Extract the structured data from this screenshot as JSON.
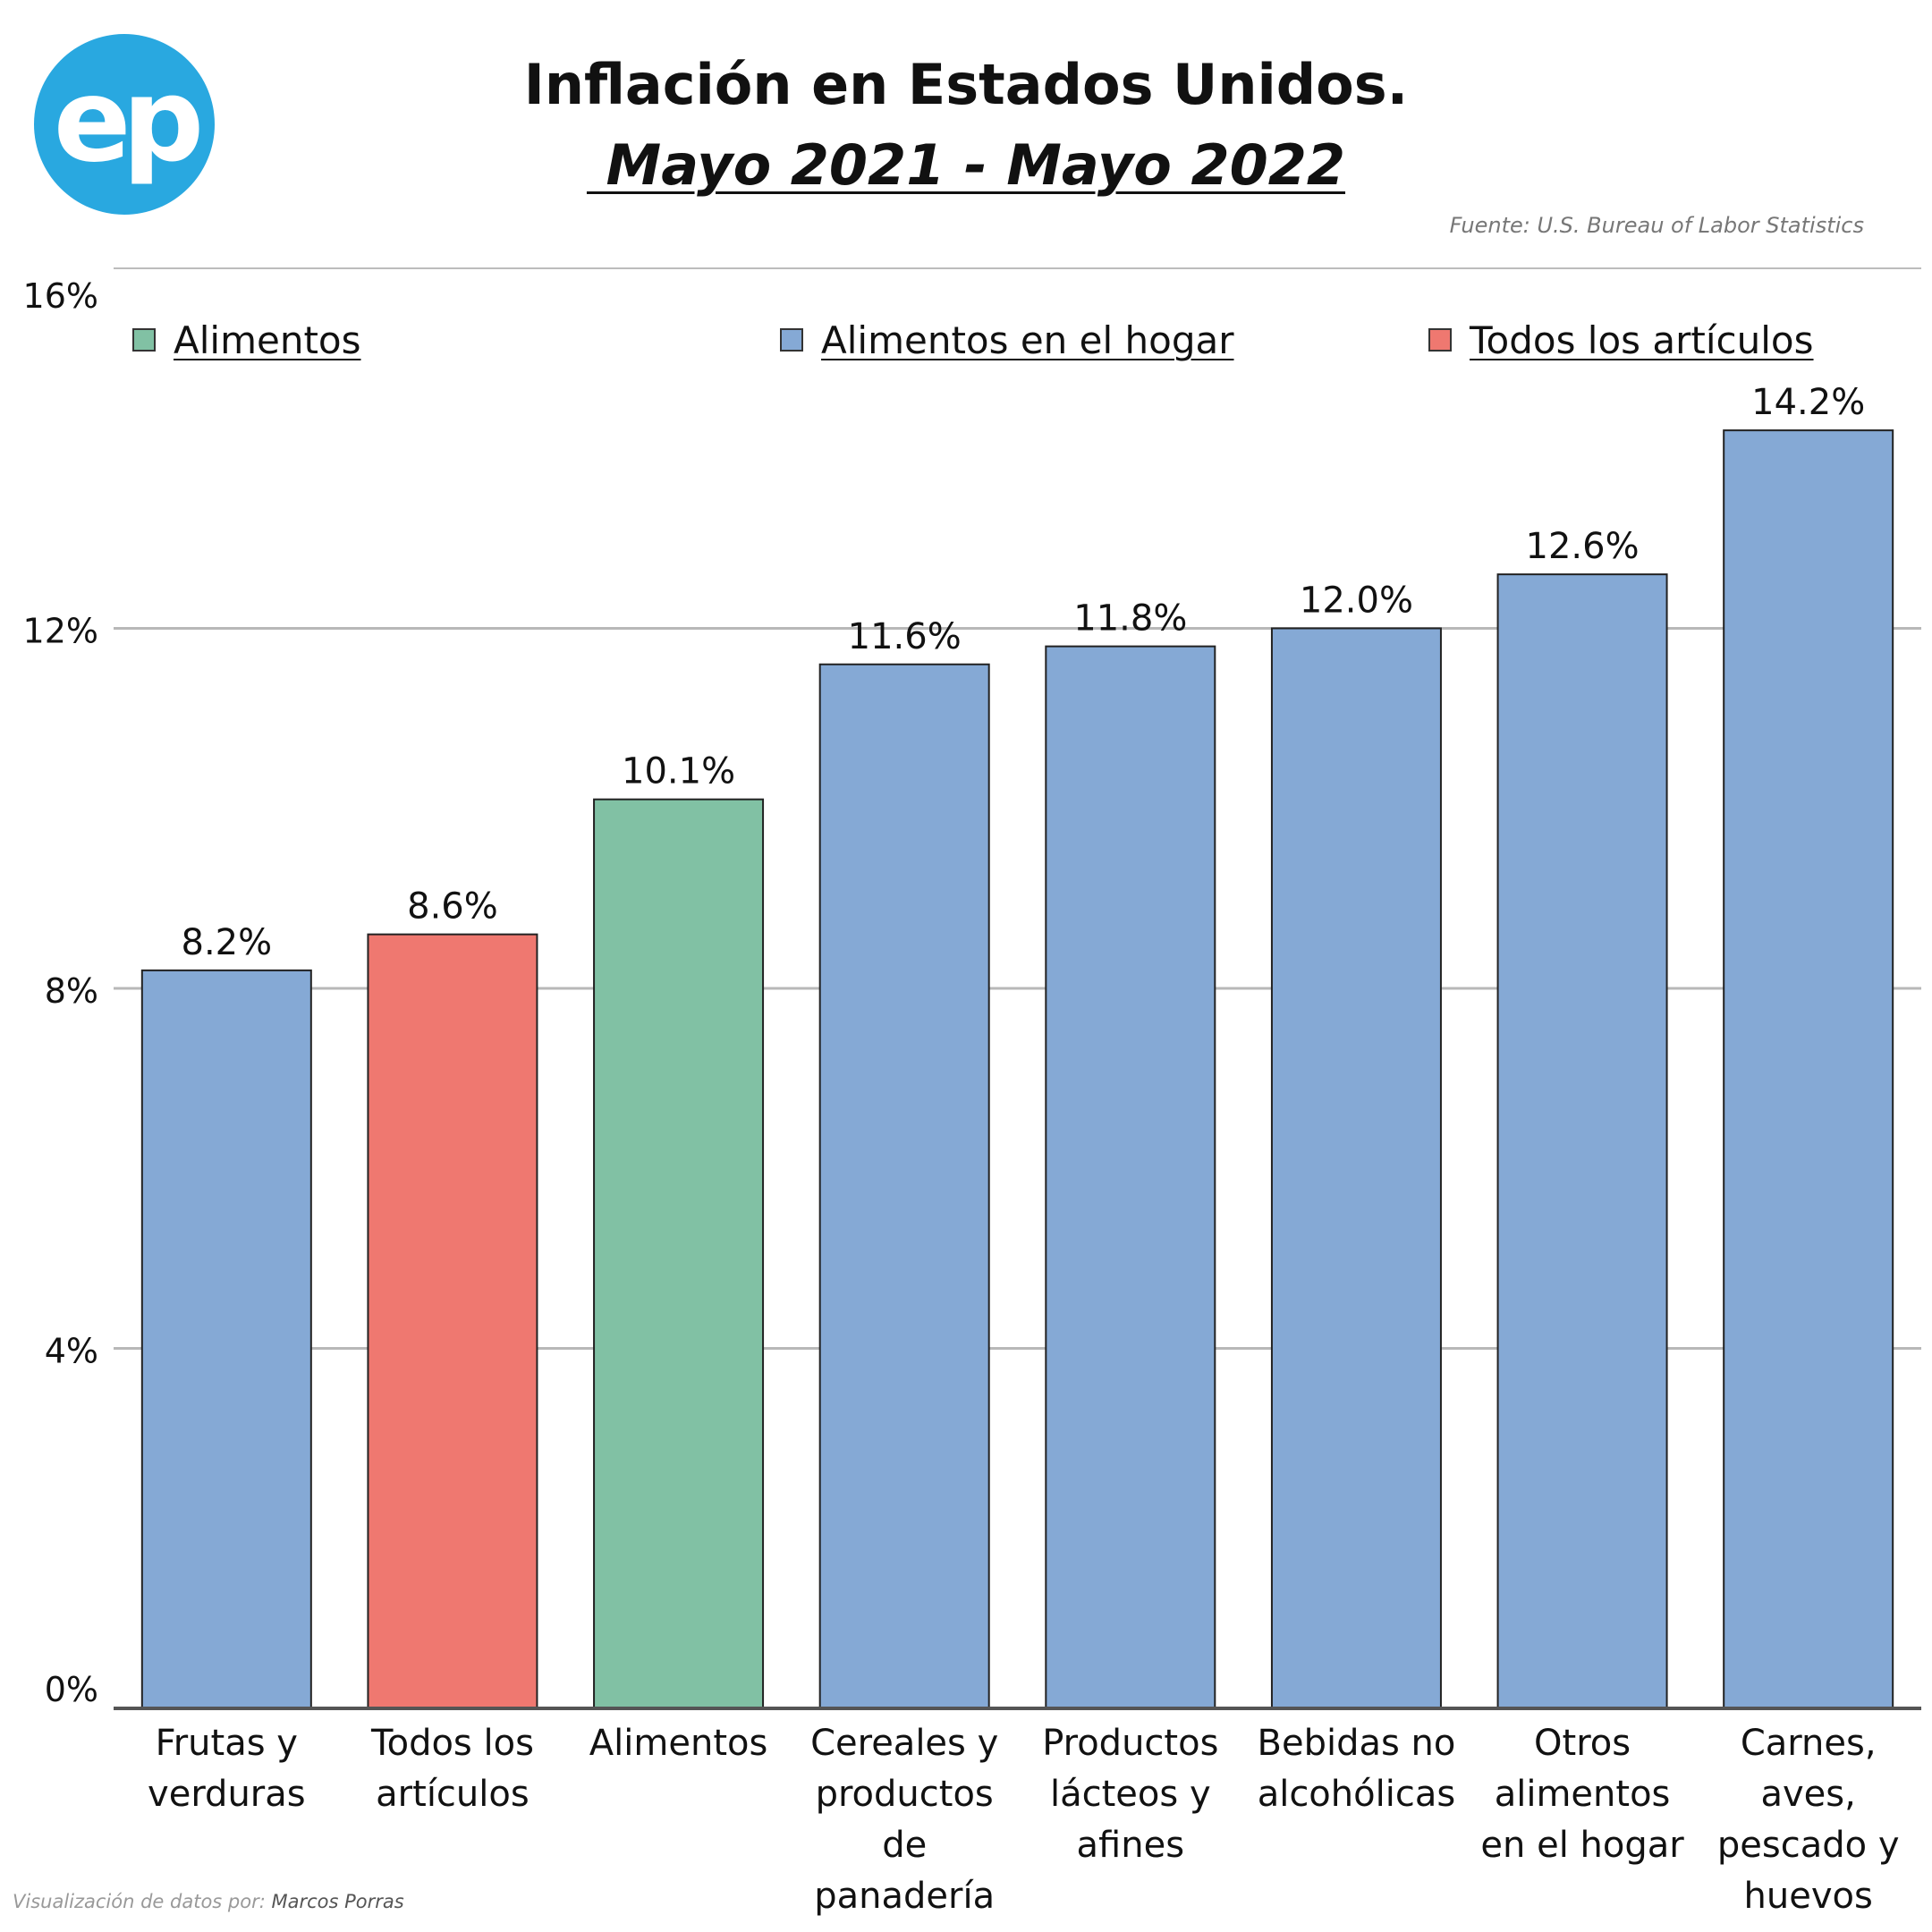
{
  "logo": {
    "text": "ep",
    "color": "#29a8e0"
  },
  "header": {
    "title": "Inflación en Estados Unidos.",
    "subtitle": " Mayo 2021 - Mayo 2022",
    "source": "Fuente: U.S. Bureau of Labor Statistics"
  },
  "footer": {
    "credit_prefix": "Visualización de datos por: ",
    "credit_name": "Marcos Porras"
  },
  "legend": [
    {
      "label": "Alimentos",
      "color": "#81c1a4"
    },
    {
      "label": "Alimentos en el hogar",
      "color": "#85a9d5"
    },
    {
      "label": "Todos los artículos",
      "color": "#ef7870"
    }
  ],
  "chart_data": {
    "type": "bar",
    "title": "Inflación en Estados Unidos. Mayo 2021 - Mayo 2022",
    "xlabel": "",
    "ylabel": "",
    "ylim": [
      0,
      16
    ],
    "yticks": [
      0,
      4,
      8,
      12,
      16
    ],
    "ytick_labels": [
      "0%",
      "4%",
      "8%",
      "12%",
      "16%"
    ],
    "grid": true,
    "categories": [
      [
        "Frutas y",
        "verduras"
      ],
      [
        "Todos los",
        "artículos"
      ],
      [
        "Alimentos"
      ],
      [
        "Cereales y",
        "productos",
        "de",
        "panadería"
      ],
      [
        "Productos",
        "lácteos y",
        "afines"
      ],
      [
        "Bebidas no",
        "alcohólicas"
      ],
      [
        "Otros",
        "alimentos",
        "en el hogar"
      ],
      [
        "Carnes,",
        "aves,",
        "pescado y",
        "huevos"
      ]
    ],
    "values": [
      8.2,
      8.6,
      10.1,
      11.6,
      11.8,
      12.0,
      12.6,
      14.2
    ],
    "value_labels": [
      "8.2%",
      "8.6%",
      "10.1%",
      "11.6%",
      "11.8%",
      "12.0%",
      "12.6%",
      "14.2%"
    ],
    "groups": [
      "Alimentos en el hogar",
      "Todos los artículos",
      "Alimentos",
      "Alimentos en el hogar",
      "Alimentos en el hogar",
      "Alimentos en el hogar",
      "Alimentos en el hogar",
      "Alimentos en el hogar"
    ],
    "colors": {
      "Alimentos": "#81c1a4",
      "Alimentos en el hogar": "#85a9d5",
      "Todos los artículos": "#ef7870"
    }
  }
}
